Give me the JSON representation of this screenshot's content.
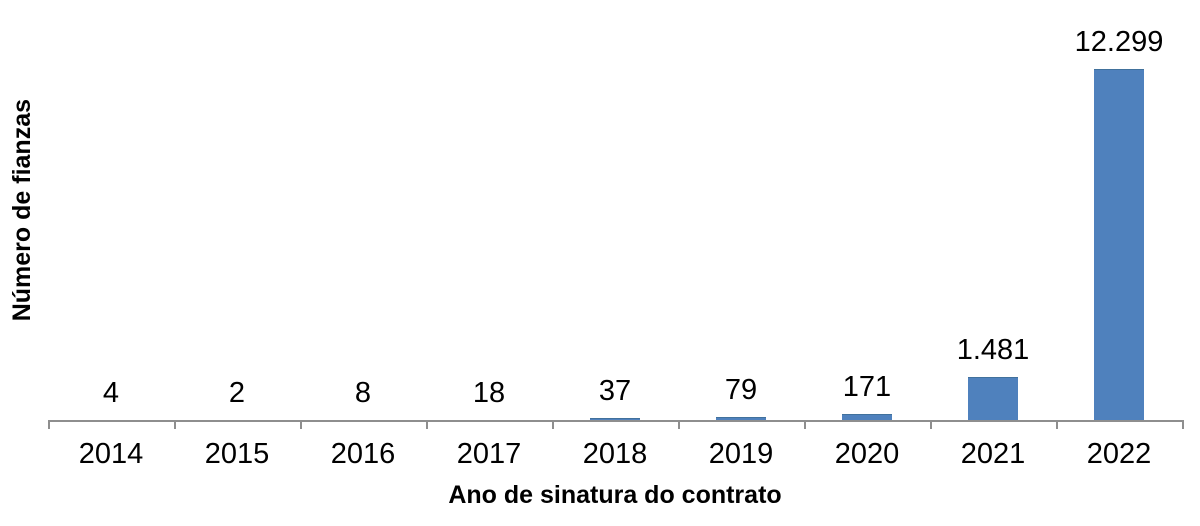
{
  "chart_data": {
    "type": "bar",
    "title": "",
    "xlabel": "Ano de sinatura do contrato",
    "ylabel": "Número de fianzas",
    "categories": [
      "2014",
      "2015",
      "2016",
      "2017",
      "2018",
      "2019",
      "2020",
      "2021",
      "2022"
    ],
    "values": [
      4,
      2,
      8,
      18,
      37,
      79,
      171,
      1481,
      12299
    ],
    "value_labels": [
      "4",
      "2",
      "8",
      "18",
      "37",
      "79",
      "171",
      "1.481",
      "12.299"
    ],
    "ylim": [
      0,
      12299
    ],
    "grid": false,
    "legend_position": "none",
    "colors": {
      "bar_fill": "#4F81BD",
      "bar_border": "#41719C",
      "axis_line": "#8E8E8E",
      "text": "#000000",
      "background": "#FFFFFF"
    }
  }
}
